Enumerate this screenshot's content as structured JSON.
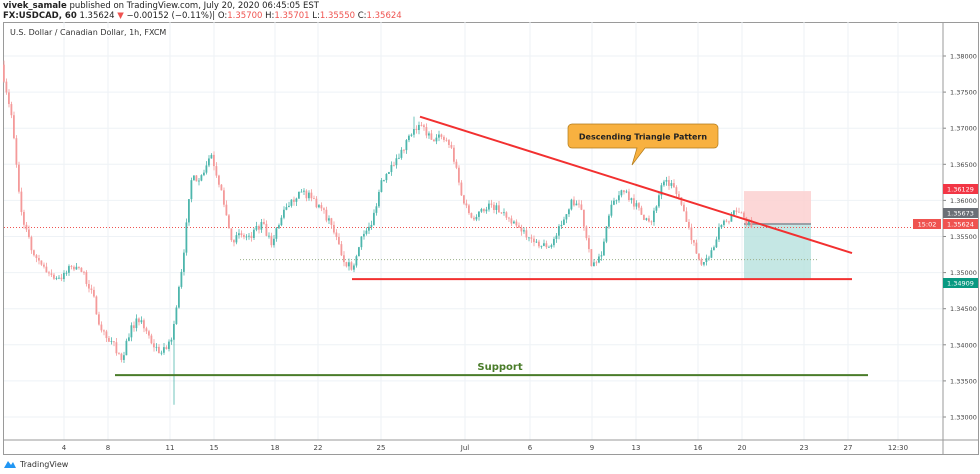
{
  "header": {
    "author": "vivek_samale",
    "published": "published on TradingView.com, July 20, 2020 06:45:05 EST",
    "symbol": "FX:USDCAD, 60",
    "last": "1.35624",
    "change": "−0.00152 (−0.11%)",
    "open_label": "O:",
    "open": "1.35700",
    "high_label": "H:",
    "high": "1.35701",
    "low_label": "L:",
    "low": "1.35550",
    "close_label": "C:",
    "close": "1.35624",
    "direction_icon": "triangle-down-icon"
  },
  "chart_title": "U.S. Dollar / Canadian Dollar, 1h, FXCM",
  "footer": {
    "brand": "TradingView"
  },
  "colors": {
    "up": "#4db6ac",
    "down": "#f49a9a",
    "trendline": "#f23030",
    "support": "#4a7c2a",
    "callout": "#f8b140",
    "target": "#b2dfdb",
    "stop": "#fbd0d0"
  },
  "chart_data": {
    "type": "candlestick",
    "ylim": [
      1.3285,
      1.3825
    ],
    "price_ticks": [
      "1.38000",
      "1.37500",
      "1.37000",
      "1.36500",
      "1.36000",
      "1.35500",
      "1.35000",
      "1.34500",
      "1.34000",
      "1.33500",
      "1.33000"
    ],
    "time_ticks": [
      "4",
      "8",
      "11",
      "15",
      "18",
      "22",
      "25",
      "Jul",
      "6",
      "9",
      "13",
      "16",
      "20",
      "23",
      "27",
      "12:30"
    ],
    "closes": [
      1.3788,
      1.3718,
      1.3584,
      1.3531,
      1.3511,
      1.3497,
      1.3491,
      1.3508,
      1.3501,
      1.3476,
      1.342,
      1.3405,
      1.3379,
      1.3427,
      1.3434,
      1.3402,
      1.3389,
      1.3407,
      1.3501,
      1.3628,
      1.3635,
      1.3663,
      1.3614,
      1.3545,
      1.3552,
      1.3548,
      1.357,
      1.3538,
      1.3576,
      1.3601,
      1.3612,
      1.3603,
      1.3589,
      1.3566,
      1.3524,
      1.3504,
      1.355,
      1.3566,
      1.3628,
      1.3649,
      1.367,
      1.3691,
      1.3704,
      1.3684,
      1.3688,
      1.3673,
      1.3607,
      1.3576,
      1.3588,
      1.3594,
      1.3583,
      1.3568,
      1.3557,
      1.3547,
      1.3537,
      1.3538,
      1.3566,
      1.3601,
      1.3587,
      1.3509,
      1.3524,
      1.3594,
      1.3614,
      1.3603,
      1.358,
      1.357,
      1.3621,
      1.3624,
      1.3594,
      1.3545,
      1.3511,
      1.3531,
      1.3566,
      1.358,
      1.3583,
      1.35624
    ],
    "annotations": {
      "callout_text": "Descending Triangle Pattern",
      "support_label": "Support",
      "trendline": {
        "from": 1.3716,
        "to": 1.3527
      },
      "triangle_base": 1.34909,
      "support_level": 1.3358,
      "position": {
        "stop": 1.36129,
        "entry": 1.35673,
        "target": 1.34909
      },
      "dotted_level": 1.3518
    },
    "axis_labels": [
      {
        "text": "1.36129",
        "price": 1.36129,
        "color": "#f23645"
      },
      {
        "text": "1.35673",
        "price": 1.35673,
        "color": "#6b6f76"
      },
      {
        "text": "1.35624",
        "price": 1.35624,
        "color": "#ef5350"
      },
      {
        "text": "15:02",
        "price": 1.355,
        "color": "#ef5350"
      },
      {
        "text": "1.34909",
        "price": 1.34909,
        "color": "#089981"
      }
    ]
  }
}
